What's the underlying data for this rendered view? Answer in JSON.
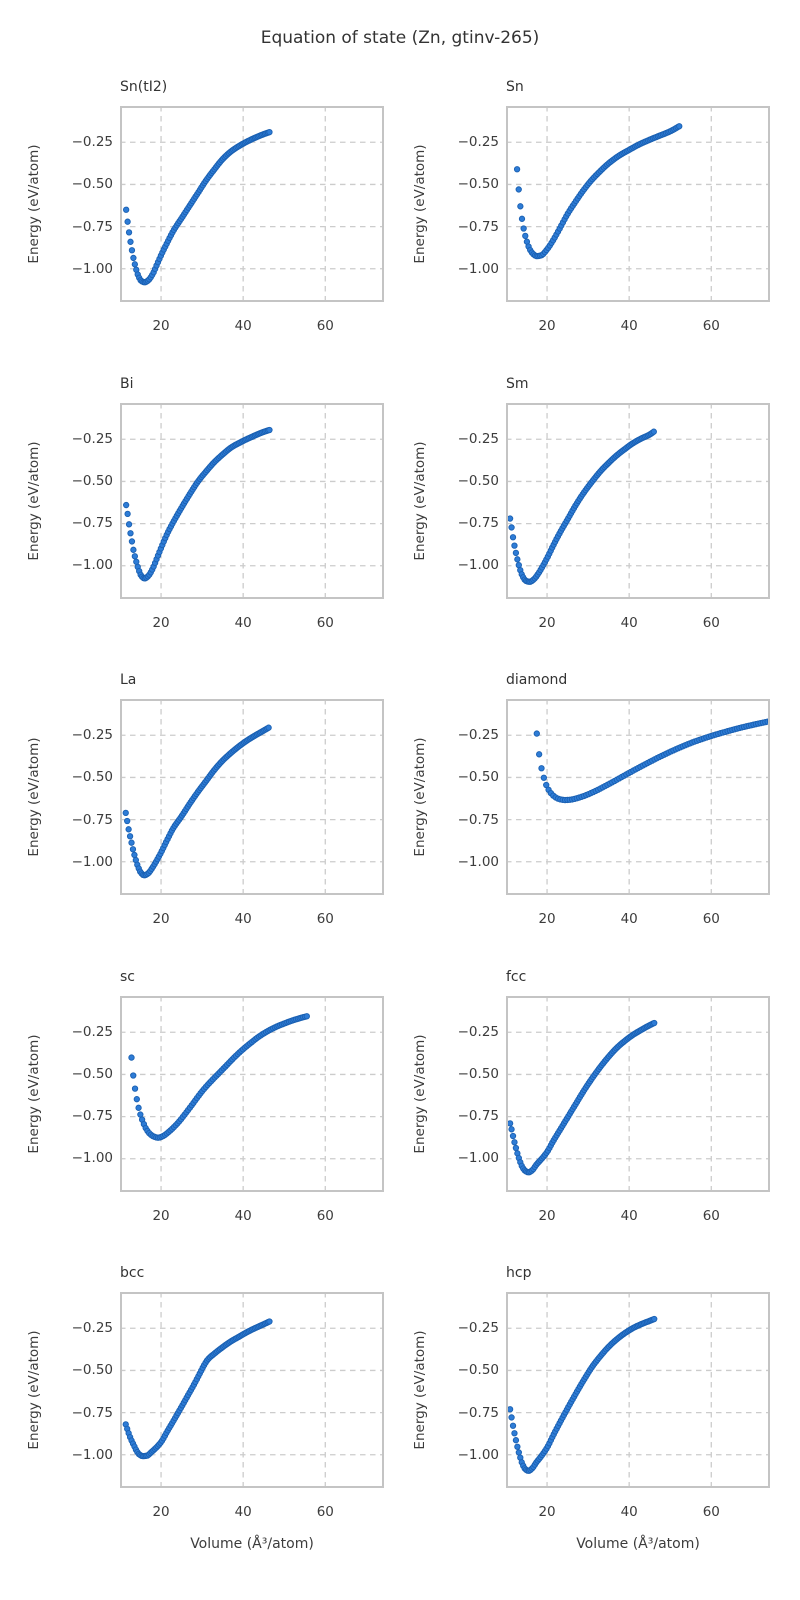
{
  "figure": {
    "suptitle": "Equation of state (Zn, gtinv-265)"
  },
  "axes": {
    "xlabel": "Volume (Å³/atom)",
    "ylabel": "Energy (eV/atom)",
    "xlim": [
      10,
      74.3
    ],
    "ylim": [
      -1.197,
      -0.035
    ],
    "x_ticks": [
      20,
      40,
      60
    ],
    "y_ticks": [
      -0.25,
      -0.5,
      -0.75,
      -1.0
    ],
    "x_tick_labels": [
      "20",
      "40",
      "60"
    ],
    "y_tick_labels": [
      "−0.25",
      "−0.50",
      "−0.75",
      "−1.00"
    ],
    "grid": true,
    "grid_style": "dashed",
    "shared_x": true,
    "shared_y": true
  },
  "style": {
    "marker_fill": "#2e7cd6",
    "marker_edge": "#1a60b2",
    "marker_radius": 2.7,
    "grid_color": "#cccccc",
    "spine_color": "#c4c4c4",
    "text_color": "#333333",
    "background": "#ffffff"
  },
  "chart_data": [
    {
      "type": "scatter",
      "title": "Sn(tI2)",
      "n_points": 100,
      "anchors": [
        [
          11.5,
          -0.65
        ],
        [
          11.9,
          -0.73
        ],
        [
          12.3,
          -0.8
        ],
        [
          12.8,
          -0.875
        ],
        [
          13.3,
          -0.94
        ],
        [
          13.9,
          -1.0
        ],
        [
          14.5,
          -1.045
        ],
        [
          15.2,
          -1.072
        ],
        [
          16.0,
          -1.08
        ],
        [
          16.9,
          -1.068
        ],
        [
          18.0,
          -1.03
        ],
        [
          19.0,
          -0.975
        ],
        [
          20.0,
          -0.92
        ],
        [
          21.5,
          -0.845
        ],
        [
          23.0,
          -0.775
        ],
        [
          25.0,
          -0.7
        ],
        [
          27.0,
          -0.625
        ],
        [
          29.0,
          -0.55
        ],
        [
          31.0,
          -0.475
        ],
        [
          33.0,
          -0.41
        ],
        [
          35.0,
          -0.35
        ],
        [
          37.0,
          -0.305
        ],
        [
          39.0,
          -0.272
        ],
        [
          41.0,
          -0.245
        ],
        [
          43.0,
          -0.222
        ],
        [
          45.0,
          -0.202
        ],
        [
          46.4,
          -0.19
        ]
      ]
    },
    {
      "type": "scatter",
      "title": "Sn",
      "n_points": 100,
      "anchors": [
        [
          12.7,
          -0.41
        ],
        [
          13.1,
          -0.53
        ],
        [
          13.5,
          -0.63
        ],
        [
          14.0,
          -0.72
        ],
        [
          14.5,
          -0.785
        ],
        [
          15.1,
          -0.84
        ],
        [
          15.8,
          -0.885
        ],
        [
          16.6,
          -0.912
        ],
        [
          17.5,
          -0.925
        ],
        [
          18.6,
          -0.92
        ],
        [
          20.0,
          -0.885
        ],
        [
          21.5,
          -0.83
        ],
        [
          23.0,
          -0.765
        ],
        [
          25.0,
          -0.675
        ],
        [
          27.0,
          -0.6
        ],
        [
          29.0,
          -0.53
        ],
        [
          31.0,
          -0.47
        ],
        [
          33.0,
          -0.42
        ],
        [
          35.0,
          -0.375
        ],
        [
          37.5,
          -0.33
        ],
        [
          40.0,
          -0.295
        ],
        [
          42.5,
          -0.262
        ],
        [
          45.0,
          -0.235
        ],
        [
          47.5,
          -0.21
        ],
        [
          50.0,
          -0.185
        ],
        [
          52.2,
          -0.155
        ]
      ]
    },
    {
      "type": "scatter",
      "title": "Bi",
      "n_points": 100,
      "anchors": [
        [
          11.5,
          -0.64
        ],
        [
          11.9,
          -0.7
        ],
        [
          12.3,
          -0.77
        ],
        [
          12.8,
          -0.84
        ],
        [
          13.3,
          -0.91
        ],
        [
          13.9,
          -0.97
        ],
        [
          14.5,
          -1.02
        ],
        [
          15.2,
          -1.06
        ],
        [
          16.0,
          -1.075
        ],
        [
          16.9,
          -1.06
        ],
        [
          18.0,
          -1.015
        ],
        [
          19.0,
          -0.955
        ],
        [
          20.0,
          -0.895
        ],
        [
          21.5,
          -0.81
        ],
        [
          23.0,
          -0.74
        ],
        [
          25.0,
          -0.655
        ],
        [
          27.0,
          -0.575
        ],
        [
          29.0,
          -0.5
        ],
        [
          31.0,
          -0.44
        ],
        [
          33.0,
          -0.385
        ],
        [
          35.0,
          -0.34
        ],
        [
          37.0,
          -0.3
        ],
        [
          39.0,
          -0.272
        ],
        [
          41.0,
          -0.248
        ],
        [
          43.0,
          -0.226
        ],
        [
          45.0,
          -0.206
        ],
        [
          46.4,
          -0.195
        ]
      ]
    },
    {
      "type": "scatter",
      "title": "Sm",
      "n_points": 100,
      "anchors": [
        [
          11.0,
          -0.72
        ],
        [
          11.4,
          -0.78
        ],
        [
          11.8,
          -0.845
        ],
        [
          12.3,
          -0.91
        ],
        [
          12.8,
          -0.965
        ],
        [
          13.4,
          -1.02
        ],
        [
          14.1,
          -1.065
        ],
        [
          14.9,
          -1.09
        ],
        [
          15.8,
          -1.095
        ],
        [
          16.8,
          -1.08
        ],
        [
          17.9,
          -1.045
        ],
        [
          19.0,
          -1.0
        ],
        [
          20.0,
          -0.955
        ],
        [
          21.5,
          -0.88
        ],
        [
          23.0,
          -0.81
        ],
        [
          25.0,
          -0.725
        ],
        [
          27.0,
          -0.64
        ],
        [
          29.0,
          -0.565
        ],
        [
          31.0,
          -0.5
        ],
        [
          33.0,
          -0.44
        ],
        [
          35.0,
          -0.39
        ],
        [
          37.0,
          -0.345
        ],
        [
          39.0,
          -0.307
        ],
        [
          41.0,
          -0.272
        ],
        [
          43.0,
          -0.245
        ],
        [
          45.0,
          -0.222
        ],
        [
          46.0,
          -0.205
        ]
      ]
    },
    {
      "type": "scatter",
      "title": "La",
      "n_points": 100,
      "anchors": [
        [
          11.4,
          -0.71
        ],
        [
          11.8,
          -0.765
        ],
        [
          12.2,
          -0.82
        ],
        [
          12.7,
          -0.875
        ],
        [
          13.2,
          -0.93
        ],
        [
          13.8,
          -0.985
        ],
        [
          14.4,
          -1.03
        ],
        [
          15.1,
          -1.065
        ],
        [
          15.9,
          -1.08
        ],
        [
          16.8,
          -1.07
        ],
        [
          17.9,
          -1.035
        ],
        [
          19.0,
          -0.99
        ],
        [
          20.0,
          -0.945
        ],
        [
          21.5,
          -0.87
        ],
        [
          23.0,
          -0.8
        ],
        [
          25.0,
          -0.73
        ],
        [
          27.0,
          -0.655
        ],
        [
          29.0,
          -0.585
        ],
        [
          31.0,
          -0.52
        ],
        [
          33.0,
          -0.455
        ],
        [
          35.0,
          -0.4
        ],
        [
          37.0,
          -0.355
        ],
        [
          39.0,
          -0.315
        ],
        [
          41.0,
          -0.28
        ],
        [
          43.0,
          -0.25
        ],
        [
          45.0,
          -0.222
        ],
        [
          46.2,
          -0.205
        ]
      ]
    },
    {
      "type": "scatter",
      "title": "diamond",
      "n_points": 100,
      "anchors": [
        [
          17.5,
          -0.24
        ],
        [
          18.0,
          -0.35
        ],
        [
          18.6,
          -0.44
        ],
        [
          19.2,
          -0.5
        ],
        [
          19.8,
          -0.545
        ],
        [
          20.5,
          -0.578
        ],
        [
          21.3,
          -0.603
        ],
        [
          22.2,
          -0.62
        ],
        [
          23.2,
          -0.63
        ],
        [
          24.4,
          -0.634
        ],
        [
          25.7,
          -0.632
        ],
        [
          27.0,
          -0.625
        ],
        [
          28.5,
          -0.614
        ],
        [
          30.0,
          -0.6
        ],
        [
          32.0,
          -0.578
        ],
        [
          34.0,
          -0.553
        ],
        [
          36.0,
          -0.527
        ],
        [
          38.0,
          -0.5
        ],
        [
          40.0,
          -0.473
        ],
        [
          42.5,
          -0.44
        ],
        [
          45.0,
          -0.408
        ],
        [
          47.5,
          -0.377
        ],
        [
          50.0,
          -0.348
        ],
        [
          52.5,
          -0.321
        ],
        [
          55.0,
          -0.296
        ],
        [
          57.5,
          -0.274
        ],
        [
          60.0,
          -0.254
        ],
        [
          62.5,
          -0.236
        ],
        [
          65.0,
          -0.219
        ],
        [
          67.5,
          -0.203
        ],
        [
          70.0,
          -0.189
        ],
        [
          72.0,
          -0.178
        ],
        [
          74.3,
          -0.166
        ]
      ]
    },
    {
      "type": "scatter",
      "title": "sc",
      "n_points": 100,
      "anchors": [
        [
          12.8,
          -0.4
        ],
        [
          13.2,
          -0.5
        ],
        [
          13.7,
          -0.59
        ],
        [
          14.2,
          -0.66
        ],
        [
          14.8,
          -0.725
        ],
        [
          15.5,
          -0.775
        ],
        [
          16.3,
          -0.82
        ],
        [
          17.2,
          -0.85
        ],
        [
          18.2,
          -0.868
        ],
        [
          19.3,
          -0.875
        ],
        [
          20.5,
          -0.865
        ],
        [
          22.0,
          -0.838
        ],
        [
          24.0,
          -0.79
        ],
        [
          26.0,
          -0.73
        ],
        [
          28.0,
          -0.665
        ],
        [
          30.0,
          -0.6
        ],
        [
          32.0,
          -0.545
        ],
        [
          34.0,
          -0.495
        ],
        [
          36.0,
          -0.445
        ],
        [
          38.0,
          -0.395
        ],
        [
          40.0,
          -0.35
        ],
        [
          42.0,
          -0.31
        ],
        [
          44.0,
          -0.273
        ],
        [
          46.0,
          -0.243
        ],
        [
          48.0,
          -0.218
        ],
        [
          50.0,
          -0.198
        ],
        [
          52.0,
          -0.18
        ],
        [
          54.0,
          -0.165
        ],
        [
          55.5,
          -0.155
        ]
      ]
    },
    {
      "type": "scatter",
      "title": "fcc",
      "n_points": 100,
      "anchors": [
        [
          11.0,
          -0.79
        ],
        [
          11.4,
          -0.83
        ],
        [
          11.8,
          -0.875
        ],
        [
          12.3,
          -0.925
        ],
        [
          12.8,
          -0.97
        ],
        [
          13.4,
          -1.015
        ],
        [
          14.0,
          -1.05
        ],
        [
          14.7,
          -1.072
        ],
        [
          15.5,
          -1.08
        ],
        [
          16.4,
          -1.068
        ],
        [
          17.4,
          -1.035
        ],
        [
          18.7,
          -1.0
        ],
        [
          20.0,
          -0.96
        ],
        [
          21.5,
          -0.895
        ],
        [
          23.0,
          -0.835
        ],
        [
          25.0,
          -0.755
        ],
        [
          27.0,
          -0.675
        ],
        [
          29.0,
          -0.595
        ],
        [
          31.0,
          -0.522
        ],
        [
          33.0,
          -0.455
        ],
        [
          35.0,
          -0.395
        ],
        [
          37.0,
          -0.342
        ],
        [
          39.0,
          -0.3
        ],
        [
          41.0,
          -0.264
        ],
        [
          43.0,
          -0.235
        ],
        [
          45.0,
          -0.208
        ],
        [
          46.1,
          -0.195
        ]
      ]
    },
    {
      "type": "scatter",
      "title": "bcc",
      "n_points": 100,
      "anchors": [
        [
          11.4,
          -0.82
        ],
        [
          11.8,
          -0.85
        ],
        [
          12.3,
          -0.885
        ],
        [
          12.8,
          -0.915
        ],
        [
          13.4,
          -0.945
        ],
        [
          14.0,
          -0.975
        ],
        [
          14.7,
          -0.998
        ],
        [
          15.6,
          -1.008
        ],
        [
          16.6,
          -1.005
        ],
        [
          17.6,
          -0.985
        ],
        [
          18.8,
          -0.958
        ],
        [
          20.0,
          -0.925
        ],
        [
          21.5,
          -0.862
        ],
        [
          23.0,
          -0.8
        ],
        [
          25.0,
          -0.715
        ],
        [
          26.5,
          -0.65
        ],
        [
          28.0,
          -0.585
        ],
        [
          29.5,
          -0.515
        ],
        [
          30.5,
          -0.468
        ],
        [
          31.5,
          -0.432
        ],
        [
          33.0,
          -0.4
        ],
        [
          35.0,
          -0.362
        ],
        [
          37.0,
          -0.328
        ],
        [
          39.0,
          -0.3
        ],
        [
          41.0,
          -0.272
        ],
        [
          43.0,
          -0.248
        ],
        [
          45.0,
          -0.226
        ],
        [
          46.4,
          -0.21
        ]
      ]
    },
    {
      "type": "scatter",
      "title": "hcp",
      "n_points": 100,
      "anchors": [
        [
          11.0,
          -0.73
        ],
        [
          11.4,
          -0.785
        ],
        [
          11.8,
          -0.84
        ],
        [
          12.3,
          -0.9
        ],
        [
          12.8,
          -0.955
        ],
        [
          13.4,
          -1.01
        ],
        [
          14.0,
          -1.055
        ],
        [
          14.7,
          -1.085
        ],
        [
          15.5,
          -1.095
        ],
        [
          16.4,
          -1.08
        ],
        [
          17.4,
          -1.045
        ],
        [
          18.7,
          -1.005
        ],
        [
          20.0,
          -0.958
        ],
        [
          21.5,
          -0.885
        ],
        [
          23.0,
          -0.815
        ],
        [
          25.0,
          -0.725
        ],
        [
          27.0,
          -0.638
        ],
        [
          29.0,
          -0.555
        ],
        [
          31.0,
          -0.478
        ],
        [
          33.0,
          -0.415
        ],
        [
          35.0,
          -0.36
        ],
        [
          37.0,
          -0.315
        ],
        [
          39.0,
          -0.278
        ],
        [
          41.0,
          -0.248
        ],
        [
          43.0,
          -0.225
        ],
        [
          45.0,
          -0.206
        ],
        [
          46.1,
          -0.195
        ]
      ]
    }
  ]
}
